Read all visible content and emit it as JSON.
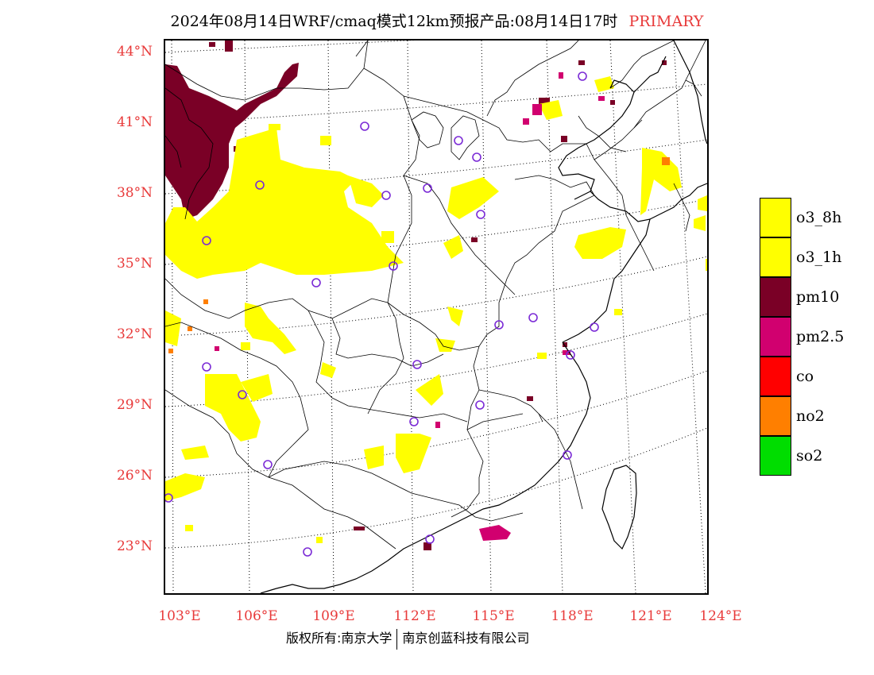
{
  "title": {
    "text": "2024年08月14日WRF/cmaq模式12km预报产品:08月14日17时",
    "tag": "PRIMARY"
  },
  "colors": {
    "o3_8h": "#ffff00",
    "o3_1h": "#ffff00",
    "pm10": "#7a0026",
    "pm2_5": "#d1006f",
    "co": "#ff0000",
    "no2": "#ff7f00",
    "so2": "#00dd00",
    "axis_label": "#e83a3a",
    "station": "#7b2bd6"
  },
  "lat_labels": [
    "44°N",
    "41°N",
    "38°N",
    "35°N",
    "32°N",
    "29°N",
    "26°N",
    "23°N"
  ],
  "lon_labels": [
    "103°E",
    "106°E",
    "109°E",
    "112°E",
    "115°E",
    "118°E",
    "121°E",
    "124°E"
  ],
  "legend": [
    {
      "key": "o3_8h",
      "label": "o3_8h"
    },
    {
      "key": "o3_1h",
      "label": "o3_1h"
    },
    {
      "key": "pm10",
      "label": "pm10"
    },
    {
      "key": "pm2_5",
      "label": "pm2.5"
    },
    {
      "key": "co",
      "label": "co"
    },
    {
      "key": "no2",
      "label": "no2"
    },
    {
      "key": "so2",
      "label": "so2"
    }
  ],
  "footer": {
    "left": "版权所有:南京大学",
    "right": "南京创蓝科技有限公司"
  }
}
